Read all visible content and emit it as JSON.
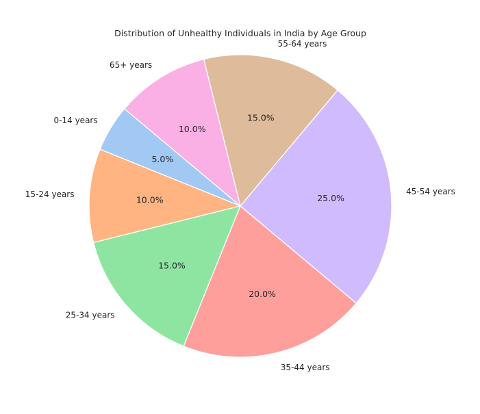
{
  "chart_data": {
    "type": "pie",
    "title": "Distribution of Unhealthy Individuals in India by Age Group",
    "categories": [
      "0-14 years",
      "15-24 years",
      "25-34 years",
      "35-44 years",
      "45-54 years",
      "55-64 years",
      "65+ years"
    ],
    "values": [
      5,
      10,
      15,
      20,
      25,
      15,
      10
    ],
    "percent_labels": [
      "5.0%",
      "10.0%",
      "15.0%",
      "20.0%",
      "25.0%",
      "15.0%",
      "10.0%"
    ],
    "colors": [
      "#a1c9f4",
      "#ffb482",
      "#8de5a1",
      "#ff9f9b",
      "#d0bbff",
      "#debb9b",
      "#fab0e4"
    ],
    "start_angle_deg": 140,
    "direction": "counterclockwise",
    "legend": "none"
  }
}
